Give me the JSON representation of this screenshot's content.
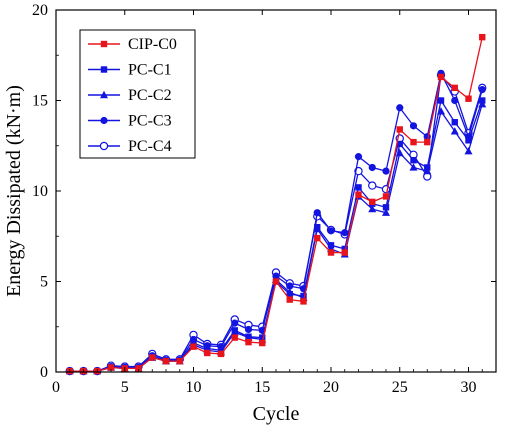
{
  "chart_data": {
    "type": "line",
    "xlabel": "Cycle",
    "ylabel": "Energy Dissipated (kN·m)",
    "xlim": [
      0,
      32
    ],
    "ylim": [
      0,
      20
    ],
    "xticks": [
      0,
      5,
      10,
      15,
      20,
      25,
      30
    ],
    "yticks": [
      0,
      5,
      10,
      15,
      20
    ],
    "grid": false,
    "legend_position": "top-left",
    "x": [
      1,
      2,
      3,
      4,
      5,
      6,
      7,
      8,
      9,
      10,
      11,
      12,
      13,
      14,
      15,
      16,
      17,
      18,
      19,
      20,
      21,
      22,
      23,
      24,
      25,
      26,
      27,
      28,
      29,
      30,
      31
    ],
    "series": [
      {
        "name": "CIP-C0",
        "color": "#e8141c",
        "marker": "square",
        "values": [
          0.05,
          0.05,
          0.05,
          0.25,
          0.2,
          0.2,
          0.8,
          0.6,
          0.6,
          1.4,
          1.05,
          1.0,
          1.9,
          1.65,
          1.6,
          5.0,
          4.0,
          3.9,
          7.4,
          6.6,
          6.6,
          9.8,
          9.4,
          9.7,
          13.4,
          12.7,
          12.7,
          16.3,
          15.7,
          15.1,
          18.5
        ]
      },
      {
        "name": "PC-C1",
        "color": "#1414e0",
        "marker": "square",
        "values": [
          0.05,
          0.05,
          0.05,
          0.25,
          0.2,
          0.2,
          0.8,
          0.6,
          0.6,
          1.6,
          1.3,
          1.2,
          2.3,
          1.95,
          1.9,
          5.0,
          4.3,
          4.2,
          8.0,
          7.0,
          6.8,
          10.2,
          9.3,
          9.1,
          12.6,
          11.7,
          11.3,
          15.0,
          13.8,
          12.8,
          15.0
        ]
      },
      {
        "name": "PC-C2",
        "color": "#1414e0",
        "marker": "triangle",
        "values": [
          0.05,
          0.05,
          0.05,
          0.25,
          0.2,
          0.2,
          0.8,
          0.6,
          0.6,
          1.5,
          1.2,
          1.1,
          2.2,
          1.9,
          1.8,
          5.1,
          4.4,
          4.1,
          7.9,
          6.8,
          6.5,
          9.7,
          9.0,
          8.8,
          12.1,
          11.3,
          11.1,
          14.4,
          13.3,
          12.2,
          14.8
        ]
      },
      {
        "name": "PC-C3",
        "color": "#1414e0",
        "marker": "circle-filled",
        "values": [
          0.05,
          0.05,
          0.05,
          0.3,
          0.25,
          0.25,
          0.9,
          0.65,
          0.65,
          1.8,
          1.45,
          1.4,
          2.7,
          2.35,
          2.3,
          5.3,
          4.75,
          4.6,
          8.8,
          7.8,
          7.7,
          11.9,
          11.3,
          11.1,
          14.6,
          13.6,
          13.0,
          16.5,
          15.0,
          13.0,
          15.6
        ]
      },
      {
        "name": "PC-C4",
        "color": "#1414e0",
        "marker": "circle-open",
        "values": [
          0.05,
          0.05,
          0.05,
          0.35,
          0.3,
          0.3,
          1.0,
          0.7,
          0.7,
          2.05,
          1.55,
          1.5,
          2.9,
          2.6,
          2.5,
          5.5,
          4.9,
          4.75,
          8.6,
          7.85,
          7.6,
          11.1,
          10.3,
          10.1,
          12.9,
          12.0,
          10.8,
          16.4,
          15.5,
          13.2,
          15.7
        ]
      }
    ]
  }
}
